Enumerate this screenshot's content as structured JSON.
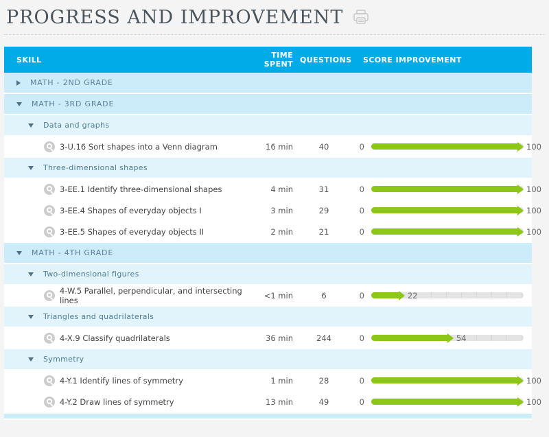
{
  "page": {
    "title": "PROGRESS AND IMPROVEMENT"
  },
  "table": {
    "headers": {
      "skill": "SKILL",
      "time_spent": "TIME SPENT",
      "questions": "QUESTIONS",
      "score_improvement": "SCORE IMPROVEMENT"
    },
    "score_scale": {
      "min": 0,
      "max": 100
    },
    "rows": [
      {
        "type": "grade",
        "label": "MATH - 2ND GRADE",
        "expanded": false
      },
      {
        "type": "grade",
        "label": "MATH - 3RD GRADE",
        "expanded": true
      },
      {
        "type": "category",
        "label": "Data and graphs",
        "expanded": true
      },
      {
        "type": "skill",
        "label": "3-U.16 Sort shapes into a Venn diagram",
        "time": "16 min",
        "questions": "40",
        "score": 100
      },
      {
        "type": "category",
        "label": "Three-dimensional shapes",
        "expanded": true
      },
      {
        "type": "skill",
        "label": "3-EE.1 Identify three-dimensional shapes",
        "time": "4 min",
        "questions": "31",
        "score": 100
      },
      {
        "type": "skill",
        "label": "3-EE.4 Shapes of everyday objects I",
        "time": "3 min",
        "questions": "29",
        "score": 100
      },
      {
        "type": "skill",
        "label": "3-EE.5 Shapes of everyday objects II",
        "time": "2 min",
        "questions": "21",
        "score": 100
      },
      {
        "type": "grade",
        "label": "MATH - 4TH GRADE",
        "expanded": true
      },
      {
        "type": "category",
        "label": "Two-dimensional figures",
        "expanded": true
      },
      {
        "type": "skill",
        "label": "4-W.5 Parallel, perpendicular, and intersecting lines",
        "time": "<1 min",
        "questions": "6",
        "score": 22
      },
      {
        "type": "category",
        "label": "Triangles and quadrilaterals",
        "expanded": true
      },
      {
        "type": "skill",
        "label": "4-X.9 Classify quadrilaterals",
        "time": "36 min",
        "questions": "244",
        "score": 54
      },
      {
        "type": "category",
        "label": "Symmetry",
        "expanded": true
      },
      {
        "type": "skill",
        "label": "4-Y.1 Identify lines of symmetry",
        "time": "1 min",
        "questions": "28",
        "score": 100
      },
      {
        "type": "skill",
        "label": "4-Y.2 Draw lines of symmetry",
        "time": "13 min",
        "questions": "49",
        "score": 100
      },
      {
        "type": "partial",
        "label": ""
      }
    ]
  },
  "colors": {
    "header_bg": "#00abe8",
    "grade_row_bg": "#cdecf9",
    "category_row_bg": "#e1f4fb",
    "bar_green": "#8cc717",
    "track_gray": "#e4e4e4",
    "page_bg": "#f4f4f4",
    "title_text": "#4a545c",
    "grade_text": "#5a7f96"
  }
}
